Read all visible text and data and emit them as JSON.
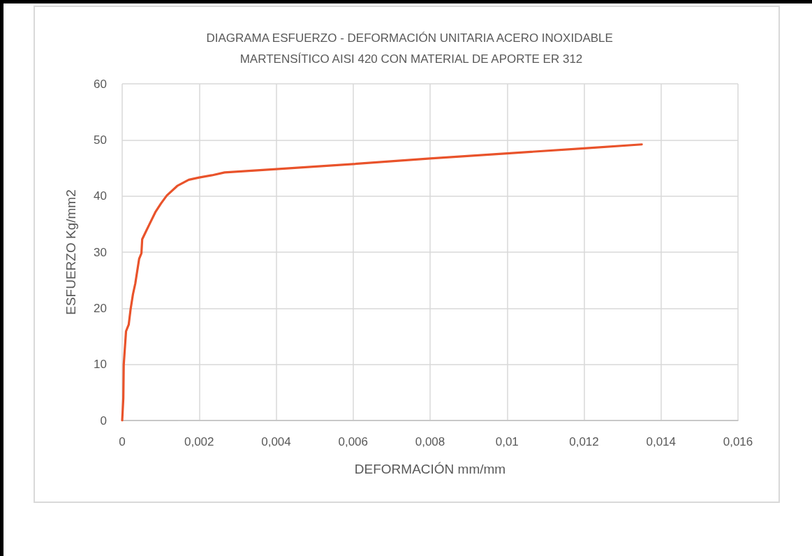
{
  "chart_data": {
    "type": "line",
    "title": "DIAGRAMA ESFUERZO - DEFORMACIÓN UNITARIA ACERO INOXIDABLE MARTENSÍTICO AISI 420 CON MATERIAL DE APORTE ER 312",
    "xlabel": "DEFORMACIÓN mm/mm",
    "ylabel": "ESFUERZO Kg/mm2",
    "x": [
      0,
      3e-05,
      4e-05,
      0.0001,
      0.00017,
      0.00022,
      0.00028,
      0.00034,
      0.00044,
      0.0005,
      0.00052,
      0.00059,
      0.00071,
      0.00086,
      0.00101,
      0.00116,
      0.00143,
      0.00173,
      0.002,
      0.00233,
      0.00266,
      0.004,
      0.006,
      0.008,
      0.01,
      0.012,
      0.0135
    ],
    "series": [
      {
        "color": "#e9532b",
        "values": [
          0,
          4,
          9.9,
          15.9,
          17.1,
          19.9,
          22.5,
          24.4,
          28.8,
          29.8,
          32.3,
          33.3,
          35,
          37.1,
          38.7,
          40.1,
          41.8,
          42.9,
          43.3,
          43.7,
          44.2,
          44.8,
          45.7,
          46.7,
          47.6,
          48.5,
          49.2
        ]
      }
    ],
    "xlim": [
      0,
      0.016
    ],
    "xticks": [
      0,
      {
        "value": 0.002,
        "label": "0,002"
      },
      {
        "value": 0.004,
        "label": "0,004"
      },
      {
        "value": 0.006,
        "label": "0,006"
      },
      {
        "value": 0.008,
        "label": "0,008"
      },
      {
        "value": 0.01,
        "label": "0,01"
      },
      {
        "value": 0.012,
        "label": "0,012"
      },
      {
        "value": 0.014,
        "label": "0,014"
      },
      {
        "value": 0.016,
        "label": "0,016"
      }
    ],
    "ylim": [
      0,
      60
    ],
    "yticks": [
      0,
      10,
      20,
      30,
      40,
      50,
      60
    ],
    "grid": true,
    "marker": "none"
  }
}
